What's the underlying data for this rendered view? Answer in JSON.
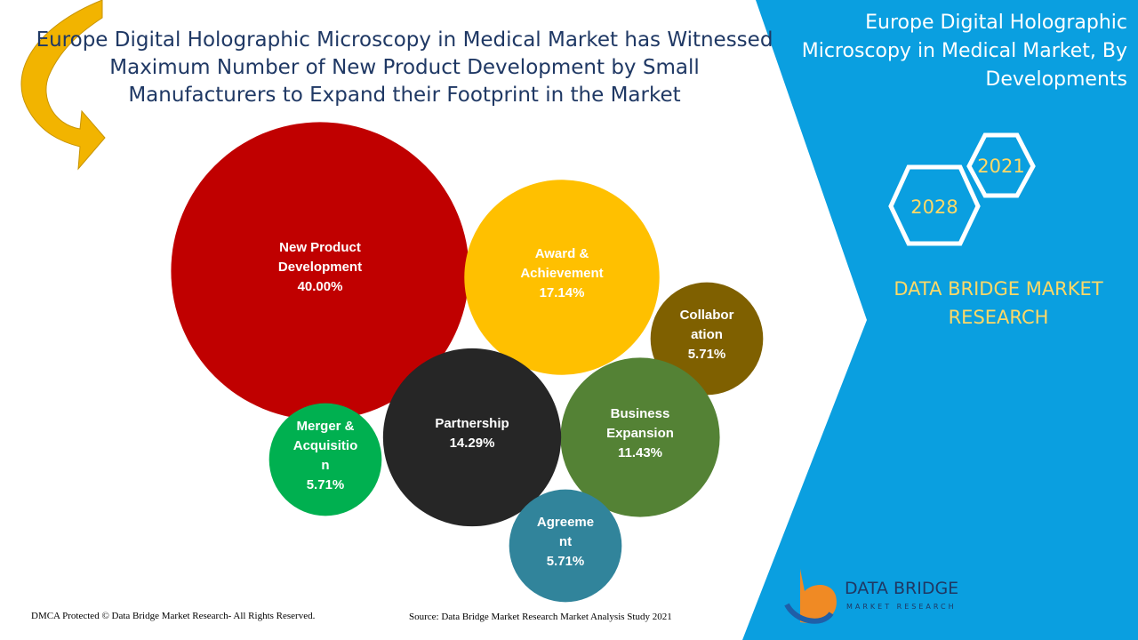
{
  "chart_data": {
    "type": "bubble",
    "title": "Europe Digital Holographic Microscopy in Medical Market has Witnessed Maximum Number of New Product Development by Small Manufacturers to Expand their Footprint in the Market",
    "categories": [
      "New Product\nDevelopment",
      "Award &\nAchievement",
      "Collabor\nation",
      "Business\nExpansion",
      "Partnership",
      "Merger &\nAcquisitio\nn",
      "Agreeme\nnt"
    ],
    "values": [
      40,
      17.14,
      5.71,
      11.43,
      14.29,
      5.71,
      5.71
    ],
    "value_labels": [
      "40.00%",
      "17.14%",
      "5.71%",
      "11.43%",
      "14.29%",
      "5.71%",
      "5.71%"
    ],
    "colors": [
      "#c00000",
      "#ffc000",
      "#7f6000",
      "#548235",
      "#262626",
      "#00b050",
      "#31849b"
    ]
  },
  "sidebar": {
    "title": "Europe Digital Holographic Microscopy in Medical Market, By Developments",
    "years": [
      "2021",
      "2028"
    ],
    "brand": "DATA BRIDGE MARKET RESEARCH"
  },
  "logo": {
    "name": "DATA BRIDGE",
    "tagline": "MARKET RESEARCH"
  },
  "footer": {
    "copyright": "DMCA Protected © Data Bridge Market Research- All Rights Reserved.",
    "source": "Source: Data Bridge Market Research Market Analysis Study 2021"
  }
}
